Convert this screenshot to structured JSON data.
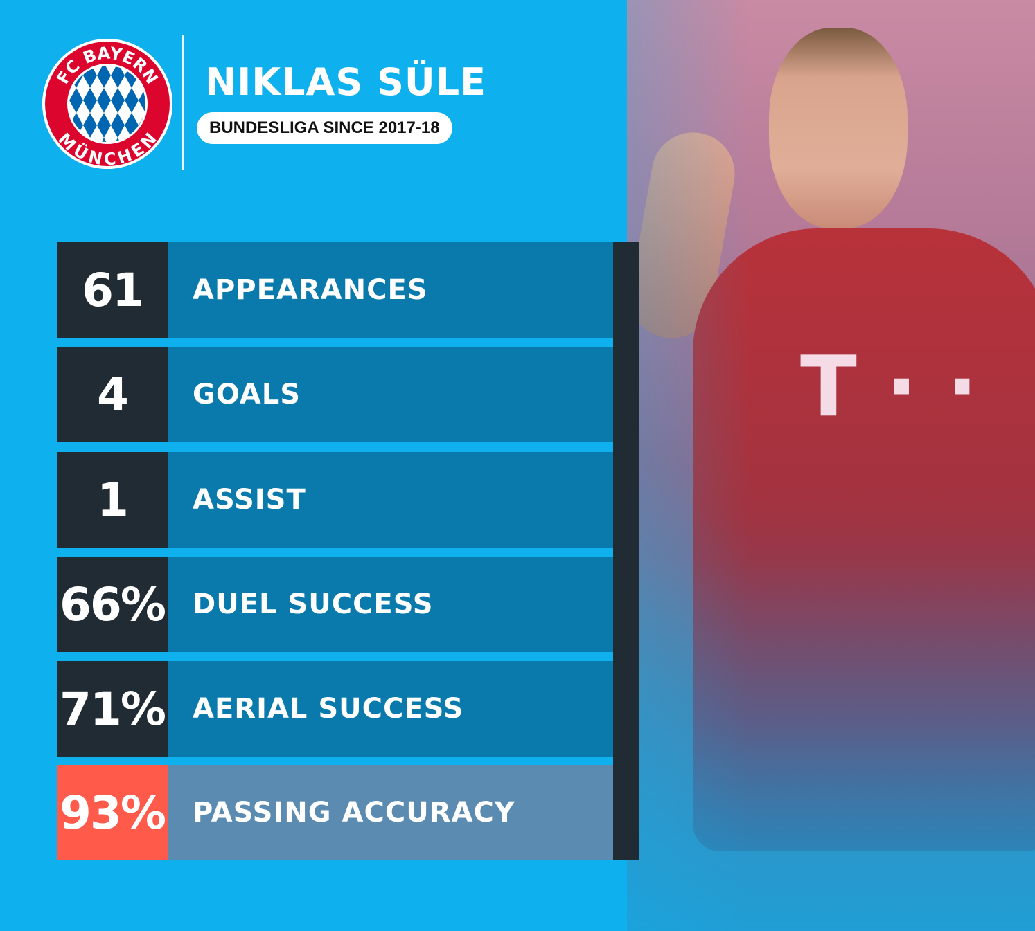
{
  "club": {
    "logo_top": "FC BAYERN",
    "logo_bottom": "MÜNCHEN",
    "colors": {
      "red": "#dc052d",
      "blue": "#0066b2"
    }
  },
  "header": {
    "player_name": "NIKLAS SÜLE",
    "subtitle": "BUNDESLIGA SINCE 2017-18"
  },
  "stats": [
    {
      "value": "61",
      "label": "APPEARANCES"
    },
    {
      "value": "4",
      "label": "GOALS"
    },
    {
      "value": "1",
      "label": "ASSIST"
    },
    {
      "value": "66%",
      "label": "DUEL SUCCESS"
    },
    {
      "value": "71%",
      "label": "AERIAL SUCCESS"
    },
    {
      "value": "93%",
      "label": "PASSING ACCURACY",
      "highlight": true
    }
  ],
  "colors": {
    "background": "#0eb0ee",
    "dark": "#212b33",
    "label_bg": "#0a7aad",
    "highlight_value": "#ff5a4a",
    "highlight_label": "#5b8bb0"
  }
}
